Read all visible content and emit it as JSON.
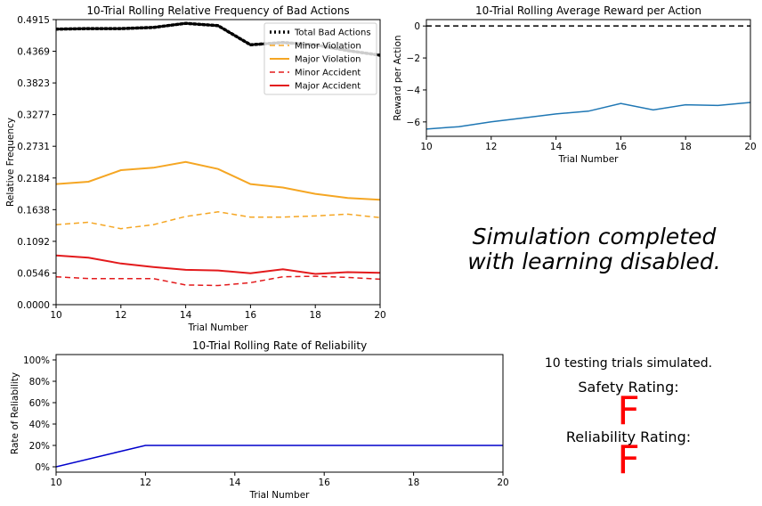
{
  "chart_data": [
    {
      "id": "bad-actions",
      "type": "line",
      "title": "10-Trial Rolling Relative Frequency of Bad Actions",
      "xlabel": "Trial Number",
      "ylabel": "Relative Frequency",
      "xlim": [
        10,
        20
      ],
      "ylim": [
        0,
        0.4915
      ],
      "xticks": [
        10,
        12,
        14,
        16,
        18,
        20
      ],
      "xtick_labels": [
        "10",
        "12",
        "14",
        "16",
        "18",
        "20"
      ],
      "yticks": [
        0,
        0.0546,
        0.1092,
        0.1638,
        0.2184,
        0.2731,
        0.3277,
        0.3823,
        0.4369,
        0.4915
      ],
      "ytick_labels": [
        "0.0000",
        "0.0546",
        "0.1092",
        "0.1638",
        "0.2184",
        "0.2731",
        "0.3277",
        "0.3823",
        "0.4369",
        "0.4915"
      ],
      "legend_position": "top-right",
      "x": [
        10,
        11,
        12,
        13,
        14,
        15,
        16,
        17,
        18,
        19,
        20
      ],
      "series": [
        {
          "name": "Total Bad Actions",
          "color": "#000000",
          "style": "dotted",
          "values": [
            0.475,
            0.476,
            0.476,
            0.478,
            0.485,
            0.481,
            0.448,
            0.452,
            0.448,
            0.438,
            0.43
          ]
        },
        {
          "name": "Minor Violation",
          "color": "#f5a623",
          "style": "dashed",
          "values": [
            0.138,
            0.142,
            0.131,
            0.138,
            0.152,
            0.16,
            0.151,
            0.151,
            0.153,
            0.156,
            0.15
          ]
        },
        {
          "name": "Major Violation",
          "color": "#f5a623",
          "style": "solid",
          "values": [
            0.208,
            0.212,
            0.232,
            0.236,
            0.246,
            0.234,
            0.208,
            0.202,
            0.191,
            0.184,
            0.181
          ]
        },
        {
          "name": "Minor Accident",
          "color": "#e31a1c",
          "style": "dashed",
          "values": [
            0.048,
            0.045,
            0.045,
            0.045,
            0.034,
            0.033,
            0.038,
            0.048,
            0.049,
            0.047,
            0.044
          ]
        },
        {
          "name": "Major Accident",
          "color": "#e31a1c",
          "style": "solid",
          "values": [
            0.085,
            0.081,
            0.071,
            0.065,
            0.06,
            0.059,
            0.054,
            0.061,
            0.053,
            0.056,
            0.055
          ]
        }
      ]
    },
    {
      "id": "reward",
      "type": "line",
      "title": "10-Trial Rolling Average Reward per Action",
      "xlabel": "Trial Number",
      "ylabel": "Reward per Action",
      "xlim": [
        10,
        20
      ],
      "ylim": [
        -6.9,
        0.4
      ],
      "xticks": [
        10,
        12,
        14,
        16,
        18,
        20
      ],
      "xtick_labels": [
        "10",
        "12",
        "14",
        "16",
        "18",
        "20"
      ],
      "yticks": [
        0,
        -2,
        -4,
        -6
      ],
      "ytick_labels": [
        "0",
        "−2",
        "−4",
        "−6"
      ],
      "reference_line": {
        "y": 0,
        "style": "dashed",
        "color": "#000000"
      },
      "x": [
        10,
        11,
        12,
        13,
        14,
        15,
        16,
        17,
        18,
        19,
        20
      ],
      "series": [
        {
          "color": "#1f77b4",
          "style": "solid",
          "values": [
            -6.45,
            -6.3,
            -6.0,
            -5.75,
            -5.5,
            -5.33,
            -4.85,
            -5.25,
            -4.93,
            -4.97,
            -4.78
          ]
        }
      ]
    },
    {
      "id": "reliability",
      "type": "line",
      "title": "10-Trial Rolling Rate of Reliability",
      "xlabel": "Trial Number",
      "ylabel": "Rate of Reliability",
      "xlim": [
        10,
        20
      ],
      "ylim": [
        -5,
        105
      ],
      "xticks": [
        10,
        12,
        14,
        16,
        18,
        20
      ],
      "xtick_labels": [
        "10",
        "12",
        "14",
        "16",
        "18",
        "20"
      ],
      "yticks": [
        0,
        20,
        40,
        60,
        80,
        100
      ],
      "ytick_labels": [
        "0%",
        "20%",
        "40%",
        "60%",
        "80%",
        "100%"
      ],
      "x": [
        10,
        12,
        13,
        14,
        15,
        16,
        17,
        18,
        19,
        20
      ],
      "series": [
        {
          "color": "#0000cc",
          "style": "solid",
          "values": [
            0,
            20,
            20,
            20,
            20,
            20,
            20,
            20,
            20,
            20
          ]
        }
      ]
    }
  ],
  "summary": {
    "message_line1": "Simulation completed",
    "message_line2": "with learning disabled.",
    "trials_text": "10 testing trials simulated.",
    "safety_label": "Safety Rating:",
    "safety_grade": "F",
    "reliability_label": "Reliability Rating:",
    "reliability_grade": "F",
    "grade_color": "#ff0000"
  }
}
